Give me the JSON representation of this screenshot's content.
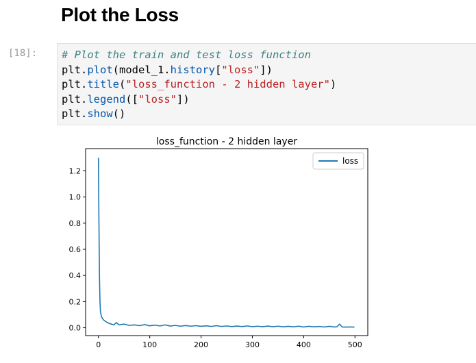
{
  "heading": "Plot the Loss",
  "cell": {
    "prompt": "[18]:",
    "code": {
      "comment": "# Plot the train and test loss function",
      "line2": {
        "a": "plt.",
        "b": "plot",
        "c": "(model_1.",
        "d": "history",
        "e": "[",
        "f": "\"loss\"",
        "g": "])"
      },
      "line3": {
        "a": "plt.",
        "b": "title",
        "c": "(",
        "d": "\"loss_function - 2 hidden layer\"",
        "e": ")"
      },
      "line4": {
        "a": "plt.",
        "b": "legend",
        "c": "([",
        "d": "\"loss\"",
        "e": "])"
      },
      "line5": {
        "a": "plt.",
        "b": "show",
        "c": "()"
      }
    }
  },
  "chart_data": {
    "type": "line",
    "title": "loss_function - 2 hidden layer",
    "xlabel": "",
    "ylabel": "",
    "xlim": [
      -25,
      525
    ],
    "ylim": [
      -0.06,
      1.37
    ],
    "xticks": [
      0,
      100,
      200,
      300,
      400,
      500
    ],
    "yticks": [
      0.0,
      0.2,
      0.4,
      0.6,
      0.8,
      1.0,
      1.2
    ],
    "ytick_labels": [
      "0.0",
      "0.2",
      "0.4",
      "0.6",
      "0.8",
      "1.0",
      "1.2"
    ],
    "grid": false,
    "legend": "top-right",
    "line_color": "#1f77b4",
    "series": [
      {
        "name": "loss",
        "x": [
          0,
          1,
          2,
          3,
          4,
          6,
          8,
          10,
          15,
          20,
          25,
          30,
          35,
          40,
          50,
          60,
          70,
          80,
          90,
          100,
          110,
          120,
          130,
          140,
          150,
          160,
          170,
          180,
          190,
          200,
          210,
          220,
          230,
          240,
          250,
          260,
          270,
          280,
          290,
          300,
          310,
          320,
          330,
          340,
          350,
          360,
          370,
          380,
          390,
          400,
          410,
          420,
          430,
          440,
          450,
          460,
          465,
          470,
          475,
          480,
          490,
          499
        ],
        "y": [
          1.3,
          0.8,
          0.4,
          0.2,
          0.12,
          0.085,
          0.07,
          0.06,
          0.045,
          0.035,
          0.028,
          0.022,
          0.04,
          0.022,
          0.028,
          0.018,
          0.022,
          0.016,
          0.024,
          0.015,
          0.02,
          0.014,
          0.022,
          0.013,
          0.018,
          0.012,
          0.017,
          0.012,
          0.016,
          0.011,
          0.015,
          0.01,
          0.016,
          0.01,
          0.014,
          0.009,
          0.013,
          0.009,
          0.014,
          0.008,
          0.012,
          0.008,
          0.013,
          0.008,
          0.012,
          0.007,
          0.011,
          0.007,
          0.012,
          0.006,
          0.011,
          0.007,
          0.01,
          0.006,
          0.011,
          0.006,
          0.008,
          0.028,
          0.006,
          0.005,
          0.006,
          0.005
        ]
      }
    ]
  }
}
